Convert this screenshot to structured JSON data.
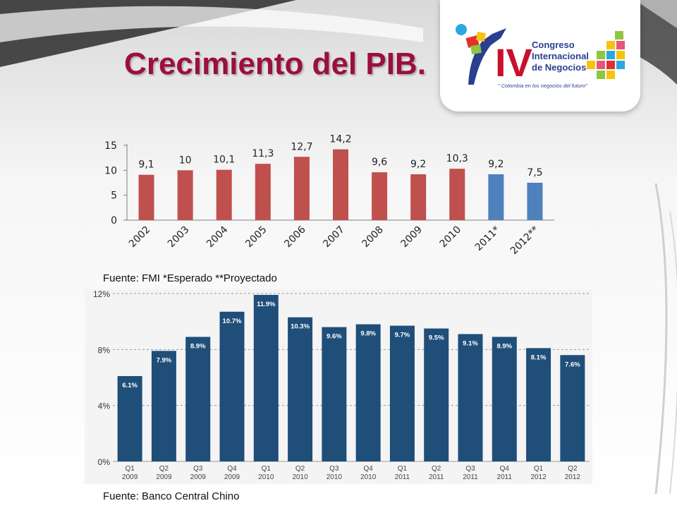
{
  "title": "Crecimiento del PIB.",
  "logo": {
    "numeral": "IV",
    "line1": "Congreso",
    "line2": "Internacional",
    "line3": "de Negocios",
    "tagline": "\" Colombia en los negocios del futuro\""
  },
  "source1": "Fuente: FMI *Esperado **Proyectado",
  "source2": "Fuente: Banco Central Chino",
  "colors": {
    "title": "#9b0f3f",
    "bar_actual": "#c0504d",
    "bar_forecast": "#4f81bd",
    "bar_quarterly": "#1f4e79"
  },
  "chart_data": [
    {
      "type": "bar",
      "categories": [
        "2002",
        "2003",
        "2004",
        "2005",
        "2006",
        "2007",
        "2008",
        "2009",
        "2010",
        "2011*",
        "2012**"
      ],
      "values": [
        9.1,
        10,
        10.1,
        11.3,
        12.7,
        14.2,
        9.6,
        9.2,
        10.3,
        9.2,
        7.5
      ],
      "value_labels": [
        "9,1",
        "10",
        "10,1",
        "11,3",
        "12,7",
        "14,2",
        "9,6",
        "9,2",
        "10,3",
        "9,2",
        "7,5"
      ],
      "bar_colors": [
        "#c0504d",
        "#c0504d",
        "#c0504d",
        "#c0504d",
        "#c0504d",
        "#c0504d",
        "#c0504d",
        "#c0504d",
        "#c0504d",
        "#4f81bd",
        "#4f81bd"
      ],
      "yticks": [
        "0",
        "5",
        "10",
        "15"
      ],
      "ylim": [
        0,
        15
      ],
      "grid": false
    },
    {
      "type": "bar",
      "categories": [
        [
          "Q1",
          "2009"
        ],
        [
          "Q2",
          "2009"
        ],
        [
          "Q3",
          "2009"
        ],
        [
          "Q4",
          "2009"
        ],
        [
          "Q1",
          "2010"
        ],
        [
          "Q2",
          "2010"
        ],
        [
          "Q3",
          "2010"
        ],
        [
          "Q4",
          "2010"
        ],
        [
          "Q1",
          "2011"
        ],
        [
          "Q2",
          "2011"
        ],
        [
          "Q3",
          "2011"
        ],
        [
          "Q4",
          "2011"
        ],
        [
          "Q1",
          "2012"
        ],
        [
          "Q2",
          "2012"
        ]
      ],
      "values": [
        6.1,
        7.9,
        8.9,
        10.7,
        11.9,
        10.3,
        9.6,
        9.8,
        9.7,
        9.5,
        9.1,
        8.9,
        8.1,
        7.6
      ],
      "value_labels": [
        "6.1%",
        "7.9%",
        "8.9%",
        "10.7%",
        "11.9%",
        "10.3%",
        "9.6%",
        "9.8%",
        "9.7%",
        "9.5%",
        "9.1%",
        "8.9%",
        "8.1%",
        "7.6%"
      ],
      "yticks": [
        "0%",
        "4%",
        "8%",
        "12%"
      ],
      "ylim": [
        0,
        12
      ],
      "grid": true
    }
  ]
}
